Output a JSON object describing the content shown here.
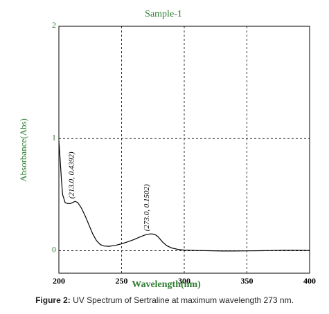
{
  "chart_data": {
    "type": "line",
    "title": "Sample-1",
    "xlabel": "Wavelength(nm)",
    "ylabel": "Absorbance(Abs)",
    "xlim": [
      200,
      400
    ],
    "ylim": [
      -0.2,
      2.0
    ],
    "x_ticks": [
      "200",
      "250",
      "300",
      "350",
      "400"
    ],
    "y_ticks": [
      "0",
      "1",
      "2"
    ],
    "grid": true,
    "annotations": [
      {
        "x": 213.0,
        "y": 0.4392,
        "label": "(213.0, 0.4392)"
      },
      {
        "x": 273.0,
        "y": 0.1502,
        "label": "(273.0, 0.1502)"
      }
    ],
    "series": [
      {
        "x": [
          200,
          201,
          202,
          203,
          205,
          207,
          209,
          211,
          213,
          215,
          218,
          221,
          224,
          227,
          230,
          233,
          236,
          240,
          245,
          250,
          255,
          260,
          265,
          268,
          271,
          273,
          275,
          277,
          279,
          281,
          283,
          286,
          290,
          295,
          300,
          310,
          320,
          330,
          340,
          350,
          360,
          370,
          380,
          390,
          400
        ],
        "y": [
          0.98,
          0.82,
          0.64,
          0.5,
          0.43,
          0.42,
          0.42,
          0.43,
          0.44,
          0.43,
          0.38,
          0.31,
          0.23,
          0.15,
          0.09,
          0.055,
          0.042,
          0.04,
          0.048,
          0.062,
          0.08,
          0.1,
          0.125,
          0.138,
          0.147,
          0.15,
          0.149,
          0.142,
          0.126,
          0.1,
          0.075,
          0.045,
          0.025,
          0.012,
          0.006,
          0.002,
          0.0,
          -0.002,
          -0.002,
          -0.001,
          0.0,
          0.002,
          0.004,
          0.004,
          0.003
        ]
      }
    ]
  },
  "caption": {
    "label": "Figure 2:",
    "text": " UV Spectrum of Sertraline at maximum wavelength 273 nm."
  },
  "colors": {
    "title": "#2e7d32",
    "axis_labels": "#2e7d32",
    "y_ticks": "#2e7d32",
    "x_ticks": "#000000",
    "line": "#000000",
    "grid": "#000000"
  }
}
